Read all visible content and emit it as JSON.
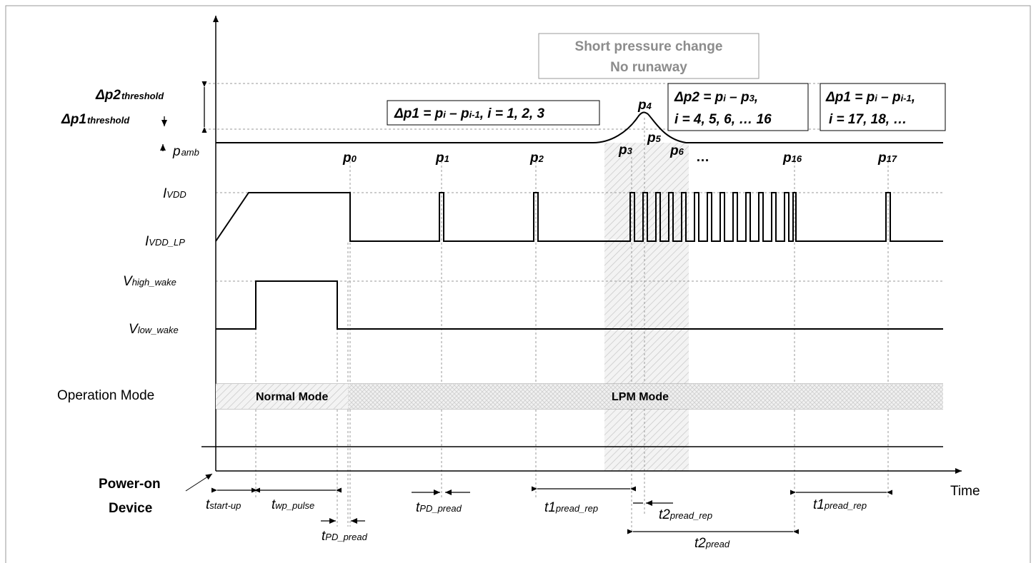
{
  "callout": {
    "line1": "Short pressure change",
    "line2": "No runaway"
  },
  "thresholds": {
    "dp2": "Δp2",
    "dp2_sub": "threshold",
    "dp1": "Δp1",
    "dp1_sub": "threshold",
    "pamb": "p",
    "pamb_sub": "amb"
  },
  "formula_boxes": {
    "box1": {
      "lhs": "Δp1 = p",
      "i": "i",
      "mid": " – p",
      "im1": "i-1",
      "rest": ", i = 1, 2, 3"
    },
    "box2": {
      "lhs": "Δp2 = p",
      "i": "i",
      "mid": " – p",
      "three": "3",
      "comma": ",",
      "line2": "i = 4, 5, 6, … 16"
    },
    "box3": {
      "lhs": "Δp1 = p",
      "i": "i",
      "mid": " – p",
      "im1": "i-1",
      "comma": ",",
      "line2": "i = 17, 18, …"
    }
  },
  "pressure_points": [
    {
      "base": "p",
      "sub": "0"
    },
    {
      "base": "p",
      "sub": "1"
    },
    {
      "base": "p",
      "sub": "2"
    },
    {
      "base": "p",
      "sub": "3"
    },
    {
      "base": "p",
      "sub": "4"
    },
    {
      "base": "p",
      "sub": "5"
    },
    {
      "base": "p",
      "sub": "6"
    },
    {
      "base": "p",
      "sub": "16"
    },
    {
      "base": "p",
      "sub": "17"
    }
  ],
  "ellipsis": "…",
  "current_labels": {
    "ivdd": "I",
    "ivdd_sub": "VDD",
    "ivddlp": "I",
    "ivddlp_sub": "VDD_LP"
  },
  "voltage_labels": {
    "vhigh": "V",
    "vhigh_sub": "high_wake",
    "vlow": "V",
    "vlow_sub": "low_wake"
  },
  "operation_mode": {
    "label": "Operation Mode",
    "normal": "Normal Mode",
    "lpm": "LPM Mode"
  },
  "power_on": {
    "line1": "Power-on",
    "line2": "Device"
  },
  "time_axis": "Time",
  "timings": {
    "startup": "t",
    "startup_sub": "start-up",
    "wp_pulse": "t",
    "wp_pulse_sub": "wp_pulse",
    "pd_pread_a": "t",
    "pd_pread_a_sub": "PD_pread",
    "pd_pread_b": "t",
    "pd_pread_b_sub": "PD_pread",
    "t1_rep_a": "t1",
    "t1_rep_a_sub": "pread_rep",
    "t2_rep": "t2",
    "t2_rep_sub": "pread_rep",
    "t2_pread": "t2",
    "t2_pread_sub": "pread",
    "t1_rep_b": "t1",
    "t1_rep_b_sub": "pread_rep"
  }
}
